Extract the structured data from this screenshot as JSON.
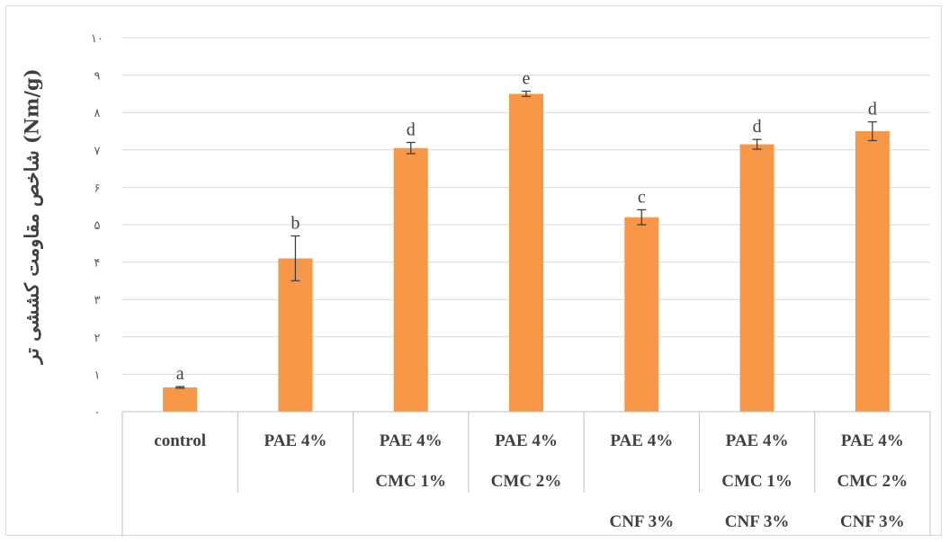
{
  "chart_data": {
    "type": "bar",
    "title": "",
    "xlabel": "",
    "ylabel": "شاخص مقاومت کششی تر (Nm/g)",
    "ylim": [
      0,
      10
    ],
    "y_ticks": [
      0,
      1,
      2,
      3,
      4,
      5,
      6,
      7,
      8,
      9,
      10
    ],
    "y_tick_labels": [
      "۰",
      "۱",
      "۲",
      "۳",
      "۴",
      "۵",
      "۶",
      "۷",
      "۸",
      "۹",
      "۱۰"
    ],
    "grid": true,
    "legend": "none",
    "bar_color": "#f79646",
    "categories": [
      [
        "control"
      ],
      [
        "PAE 4%"
      ],
      [
        "PAE 4%",
        "CMC 1%"
      ],
      [
        "PAE 4%",
        "CMC 2%"
      ],
      [
        "PAE 4%",
        "",
        "CNF  3%"
      ],
      [
        "PAE 4%",
        "CMC 1%",
        "CNF  3%"
      ],
      [
        "PAE 4%",
        "CMC 2%",
        "CNF  3%"
      ]
    ],
    "values": [
      0.65,
      4.1,
      7.05,
      8.5,
      5.2,
      7.15,
      7.5
    ],
    "error": [
      0.02,
      0.6,
      0.15,
      0.07,
      0.2,
      0.13,
      0.25
    ],
    "data_labels": [
      "a",
      "b",
      "d",
      "e",
      "c",
      "d",
      "d"
    ]
  }
}
